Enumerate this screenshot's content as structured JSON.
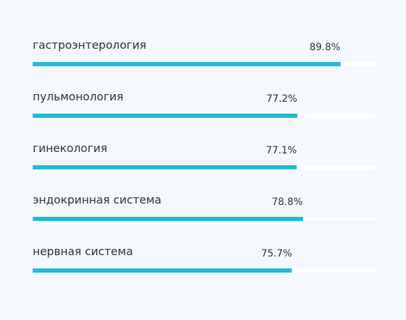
{
  "colors": {
    "background": "#f5f8fc",
    "bar_fill": "#1ebcd3",
    "bar_track": "#ffffff",
    "text": "#2b2f3a"
  },
  "rows": [
    {
      "label": "гастроэнтерология",
      "value_text": "89.8%",
      "value": 89.8
    },
    {
      "label": "пульмонология",
      "value_text": "77.2%",
      "value": 77.2
    },
    {
      "label": "гинекология",
      "value_text": "77.1%",
      "value": 77.1
    },
    {
      "label": "эндокринная система",
      "value_text": "78.8%",
      "value": 78.8
    },
    {
      "label": "нервная система",
      "value_text": "75.7%",
      "value": 75.7
    }
  ]
}
